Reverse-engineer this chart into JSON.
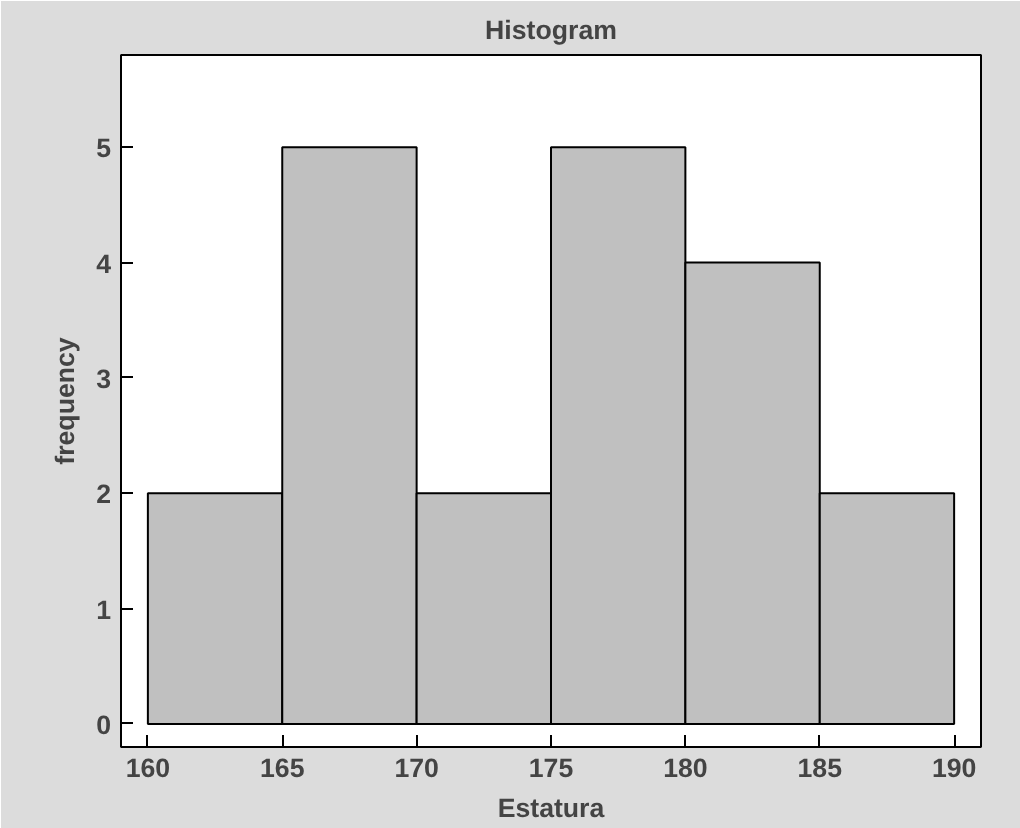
{
  "chart_data": {
    "type": "histogram",
    "title": "Histogram",
    "xlabel": "Estatura",
    "ylabel": "frequency",
    "bins": [
      160,
      165,
      170,
      175,
      180,
      185,
      190
    ],
    "values": [
      2,
      5,
      2,
      5,
      4,
      2
    ],
    "color": "#c0c0c0",
    "xlim": [
      159,
      191
    ],
    "ylim": [
      -0.2,
      5.8
    ],
    "xticks": [
      160,
      165,
      170,
      175,
      180,
      185,
      190
    ],
    "yticks": [
      0,
      1,
      2,
      3,
      4,
      5
    ],
    "grid": false
  }
}
